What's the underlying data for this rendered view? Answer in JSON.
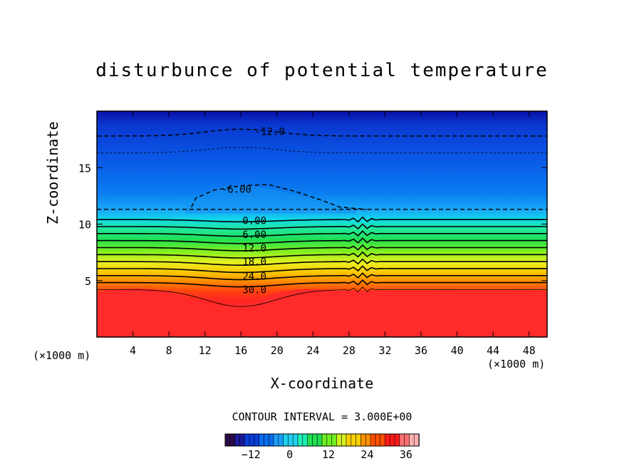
{
  "chart_data": {
    "type": "contour",
    "title": "disturbunce of potential temperature",
    "xlabel": "X-coordinate",
    "ylabel": "Z-coordinate",
    "x_unit_left": "(×1000 m)",
    "x_unit_right": "(×1000 m)",
    "xlim": [
      0,
      50
    ],
    "ylim": [
      0,
      20
    ],
    "x_ticks": [
      4,
      8,
      12,
      16,
      20,
      24,
      28,
      32,
      36,
      40,
      44,
      48
    ],
    "y_ticks": [
      5,
      10,
      15
    ],
    "contour_interval_text": "CONTOUR INTERVAL = 3.000E+00",
    "contour_interval": 3.0,
    "contour_labels": [
      {
        "text": "-12.0",
        "x": 19.2,
        "y": 18.2
      },
      {
        "text": "-6.00",
        "x": 15.5,
        "y": 13.1
      },
      {
        "text": "0.00",
        "x": 17.5,
        "y": 10.3
      },
      {
        "text": "6.00",
        "x": 17.5,
        "y": 9.1
      },
      {
        "text": "12.0",
        "x": 17.5,
        "y": 7.9
      },
      {
        "text": "18.0",
        "x": 17.5,
        "y": 6.7
      },
      {
        "text": "24.0",
        "x": 17.5,
        "y": 5.4
      },
      {
        "text": "30.0",
        "x": 17.5,
        "y": 4.2
      }
    ],
    "colorbar": {
      "ticks": [
        -12,
        0,
        12,
        24,
        36
      ],
      "range": [
        -20,
        40
      ],
      "colors": [
        "#2a0a4a",
        "#1a1a9a",
        "#0a3cd8",
        "#0a6cf0",
        "#1aa0ff",
        "#20d0f0",
        "#20f0b0",
        "#20e050",
        "#70f020",
        "#d0f020",
        "#f8d000",
        "#ff9000",
        "#ff5000",
        "#ff1a1a",
        "#ff7070",
        "#ffb0b0"
      ]
    },
    "field_colors": {
      "top": "#0a1ab0",
      "upper": "#0a4ce0",
      "mid_upper": "#0a78f0",
      "tropopause": "#10b8f0",
      "green": "#20e060",
      "yellow": "#e0f020",
      "orange": "#ff8c00",
      "lower": "#ff2020"
    }
  }
}
